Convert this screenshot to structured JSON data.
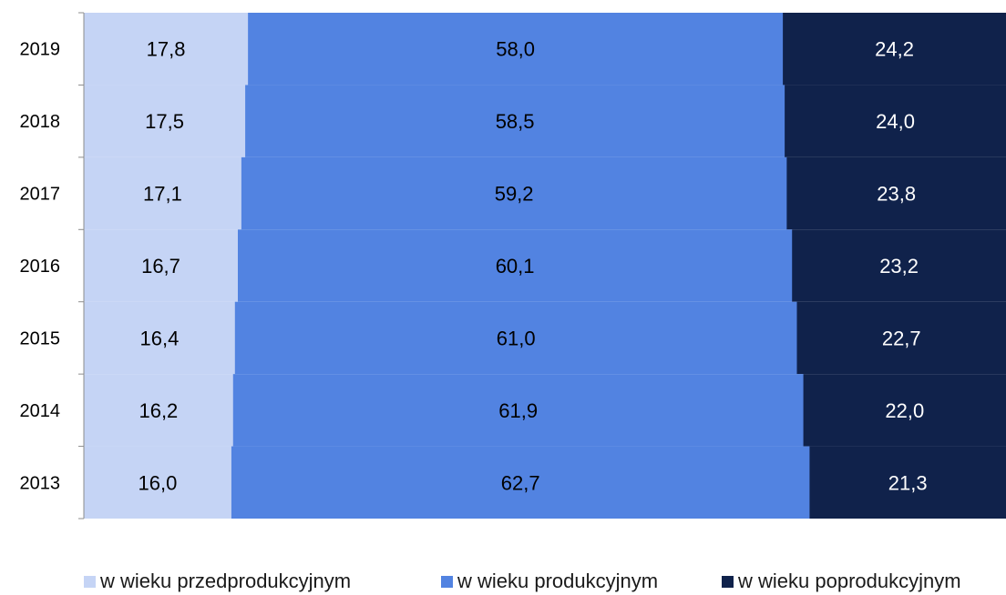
{
  "chart_data": {
    "type": "bar",
    "orientation": "horizontal",
    "stacked": "percent",
    "categories": [
      "2019",
      "2018",
      "2017",
      "2016",
      "2015",
      "2014",
      "2013"
    ],
    "series": [
      {
        "name": "w wieku przedprodukcyjnym",
        "color": "#c5d4f5",
        "label_color": "#000000",
        "values": [
          17.8,
          17.5,
          17.1,
          16.7,
          16.4,
          16.2,
          16.0
        ],
        "labels": [
          "17,8",
          "17,5",
          "17,1",
          "16,7",
          "16,4",
          "16,2",
          "16,0"
        ]
      },
      {
        "name": "w wieku produkcyjnym",
        "color": "#5283e1",
        "label_color": "#000000",
        "values": [
          58.0,
          58.5,
          59.2,
          60.1,
          61.0,
          61.9,
          62.7
        ],
        "labels": [
          "58,0",
          "58,5",
          "59,2",
          "60,1",
          "61,0",
          "61,9",
          "62,7"
        ]
      },
      {
        "name": "w wieku poprodukcyjnym",
        "color": "#10224b",
        "label_color": "#ffffff",
        "values": [
          24.2,
          24.0,
          23.8,
          23.2,
          22.7,
          22.0,
          21.3
        ],
        "labels": [
          "24,2",
          "24,0",
          "23,8",
          "23,2",
          "22,7",
          "22,0",
          "21,3"
        ]
      }
    ],
    "xlim": [
      0,
      100
    ],
    "grid": false,
    "legend_position": "bottom"
  }
}
